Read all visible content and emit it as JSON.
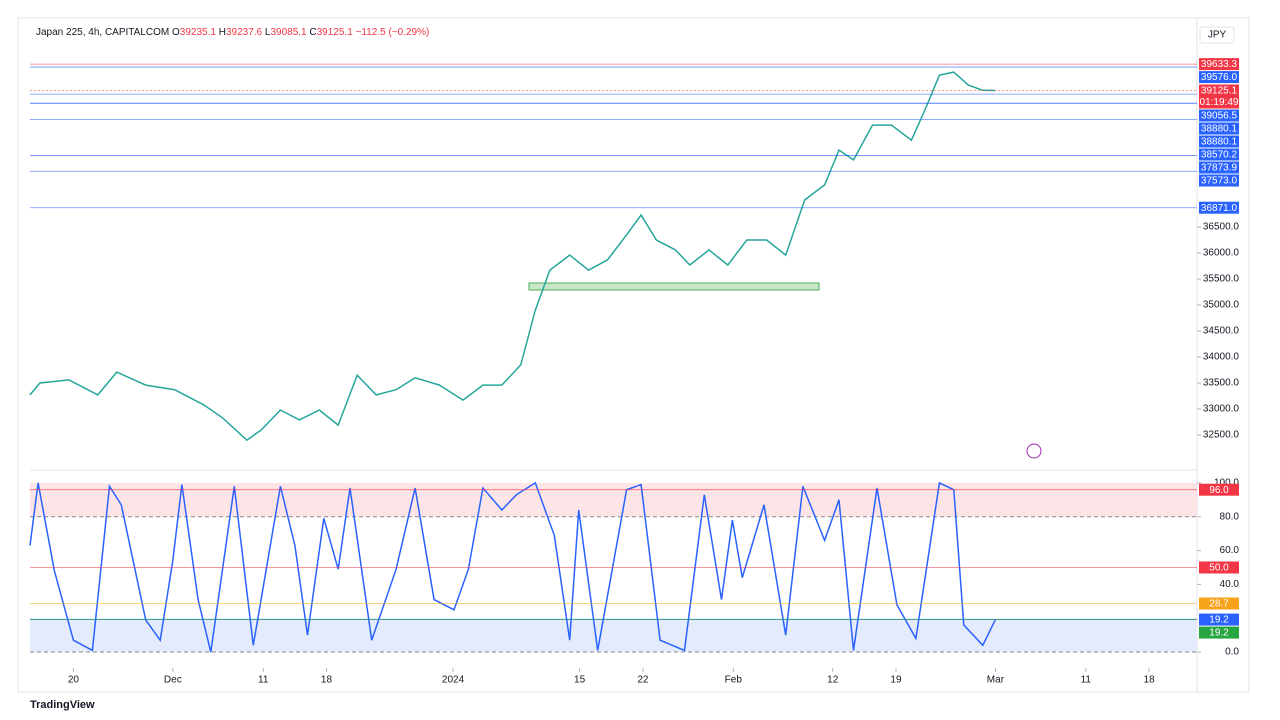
{
  "header": {
    "title": "Japan 225, 4h, CAPITALCOM",
    "ohlc": [
      {
        "key": "O",
        "value": "39235.1"
      },
      {
        "key": "H",
        "value": "39237.6"
      },
      {
        "key": "L",
        "value": "39085.1"
      },
      {
        "key": "C",
        "value": "39125.1"
      }
    ],
    "change": "−112.5 (−0.29%)",
    "currency": "JPY"
  },
  "footer": {
    "brand": "TradingView"
  },
  "chart_data": [
    {
      "type": "line",
      "color": "#26a69a",
      "x": [
        -4.8,
        -3.7,
        -0.5,
        2.7,
        4.8,
        8.0,
        11.2,
        14.4,
        16.5,
        19.2,
        20.8,
        22.9,
        25.0,
        27.2,
        29.3,
        31.4,
        33.5,
        35.7,
        37.8,
        40.5,
        43.1,
        45.3,
        47.4,
        49.5,
        51.1,
        52.7,
        54.9,
        57.0,
        59.1,
        61.2,
        62.8,
        64.5,
        66.6,
        68.2,
        70.3,
        72.4,
        74.5,
        76.7,
        78.8,
        80.9,
        83.1,
        84.7,
        86.3,
        88.4,
        90.5,
        92.7,
        94.2,
        95.8,
        97.4,
        99.0,
        100.6,
        102.0
      ],
      "values": [
        33270,
        33500,
        33560,
        33270,
        33710,
        33460,
        33370,
        33080,
        32830,
        32400,
        32600,
        32980,
        32790,
        32980,
        32690,
        33650,
        33270,
        33370,
        33600,
        33460,
        33170,
        33460,
        33460,
        33850,
        34900,
        35670,
        35960,
        35670,
        35870,
        36350,
        36730,
        36250,
        36060,
        35770,
        36060,
        35770,
        36250,
        36250,
        35960,
        37020,
        37310,
        37980,
        37790,
        38460,
        38460,
        38170,
        38750,
        39420,
        39480,
        39230,
        39130,
        39125.1
      ],
      "xlim": [
        -4.8,
        124.3
      ],
      "ylim": [
        31980,
        40520
      ],
      "yticks": [
        {
          "value": 32500,
          "label": "32500.0"
        },
        {
          "value": 33000,
          "label": "33000.0"
        },
        {
          "value": 33500,
          "label": "33500.0"
        },
        {
          "value": 34000,
          "label": "34000.0"
        },
        {
          "value": 34500,
          "label": "34500.0"
        },
        {
          "value": 35000,
          "label": "35000.0"
        },
        {
          "value": 35500,
          "label": "35500.0"
        },
        {
          "value": 36000,
          "label": "36000.0"
        },
        {
          "value": 36500,
          "label": "36500.0"
        }
      ],
      "levels": [
        {
          "value": 39633.3,
          "label": "39633.3",
          "color": "#f23645"
        },
        {
          "value": 39576,
          "label": "39576.0",
          "color": "#2962ff"
        },
        {
          "value": 39125.1,
          "label": "39125.1",
          "color": "#f23645",
          "countdown": "01:19:49"
        },
        {
          "value": 39056.5,
          "label": "39056.5",
          "color": "#2962ff"
        },
        {
          "value": 38880.1,
          "label": "38880.1",
          "color": "#2962ff"
        },
        {
          "value": 38880.1,
          "label": "38880.1",
          "color": "#2962ff"
        },
        {
          "value": 38570.2,
          "label": "38570.2",
          "color": "#2962ff"
        },
        {
          "value": 37873.9,
          "label": "37873.9",
          "color": "#2962ff"
        },
        {
          "value": 37573,
          "label": "37573.0",
          "color": "#2962ff"
        },
        {
          "value": 36871,
          "label": "36871.0",
          "color": "#2962ff"
        }
      ]
    },
    {
      "type": "line",
      "color": "#2962ff",
      "x": [
        -4.8,
        -3.9,
        -2.1,
        0,
        2.1,
        4.0,
        5.3,
        8.0,
        9.6,
        11.0,
        12.0,
        13.8,
        15.2,
        17.8,
        19.9,
        22.9,
        24.5,
        25.9,
        27.7,
        29.3,
        30.6,
        33.0,
        35.7,
        37.8,
        39.9,
        42.1,
        43.7,
        45.3,
        47.4,
        49.0,
        51.1,
        53.2,
        54.9,
        55.9,
        58.0,
        61.2,
        62.8,
        64.9,
        67.6,
        69.8,
        71.7,
        72.9,
        74.0,
        76.4,
        78.8,
        80.7,
        83.1,
        84.7,
        86.3,
        88.9,
        91.1,
        93.2,
        95.8,
        97.4,
        98.5,
        100.6,
        102.0
      ],
      "values": [
        63,
        100,
        48,
        7,
        1,
        98,
        87,
        19,
        7,
        54,
        99,
        31,
        0,
        98,
        4,
        98,
        63,
        10,
        79,
        49,
        97,
        7,
        49,
        97,
        31,
        25,
        49,
        97,
        84,
        93,
        100,
        69,
        7,
        84,
        1,
        96,
        99,
        7,
        1,
        93,
        31,
        78,
        44,
        87,
        10,
        98,
        66,
        90,
        1,
        97,
        28,
        8,
        100,
        96,
        16,
        4,
        19.2
      ],
      "xlim": [
        -4.8,
        124.3
      ],
      "ylim": [
        -4.7,
        104.1
      ],
      "yticks": [
        {
          "value": 100,
          "label": "100.0"
        },
        {
          "value": 80,
          "label": "80.0"
        },
        {
          "value": 60,
          "label": "60.0"
        },
        {
          "value": 40,
          "label": "40.0"
        },
        {
          "value": 0,
          "label": "0.0"
        }
      ],
      "bands": [
        {
          "from": 80,
          "to": 100,
          "color": "#fde4e6"
        },
        {
          "from": 0,
          "to": 20,
          "color": "#e3ebfc"
        }
      ],
      "levels": [
        {
          "value": 96,
          "label": "96.0",
          "color": "#f23645"
        },
        {
          "value": 50,
          "label": "50.0",
          "color": "#f23645"
        },
        {
          "value": 28.7,
          "label": "28.7",
          "color": "#f7a21b"
        },
        {
          "value": 19.2,
          "label": "19.2",
          "color": "#2962ff"
        },
        {
          "value": 19.2,
          "label": "19.2",
          "color": "#26a641"
        }
      ],
      "xticks": [
        {
          "value": 0,
          "label": "20"
        },
        {
          "value": 11,
          "label": "Dec"
        },
        {
          "value": 21,
          "label": "11"
        },
        {
          "value": 28,
          "label": "18"
        },
        {
          "value": 42,
          "label": "2024"
        },
        {
          "value": 56,
          "label": "15"
        },
        {
          "value": 63,
          "label": "22"
        },
        {
          "value": 73,
          "label": "Feb"
        },
        {
          "value": 84,
          "label": "12"
        },
        {
          "value": 91,
          "label": "19"
        },
        {
          "value": 102,
          "label": "Mar"
        },
        {
          "value": 112,
          "label": "11"
        },
        {
          "value": 119,
          "label": "18"
        }
      ]
    }
  ]
}
